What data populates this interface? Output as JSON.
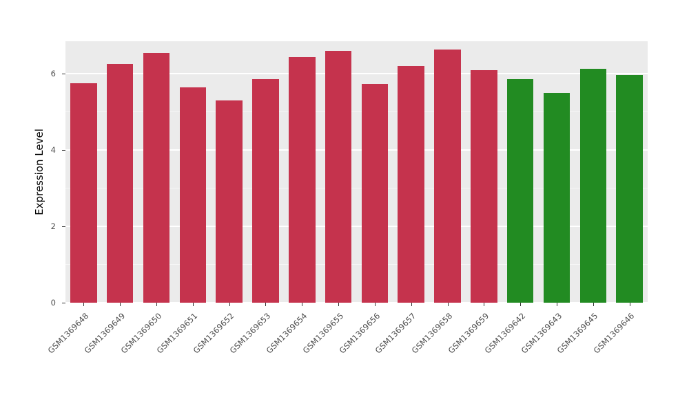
{
  "chart_data": {
    "type": "bar",
    "title": "",
    "xlabel": "",
    "ylabel": "Expression Level",
    "categories": [
      "GSM1369648",
      "GSM1369649",
      "GSM1369650",
      "GSM1369651",
      "GSM1369652",
      "GSM1369653",
      "GSM1369654",
      "GSM1369655",
      "GSM1369656",
      "GSM1369657",
      "GSM1369658",
      "GSM1369659",
      "GSM1369642",
      "GSM1369643",
      "GSM1369645",
      "GSM1369646"
    ],
    "values": [
      5.75,
      6.25,
      6.55,
      5.65,
      5.3,
      5.85,
      6.43,
      6.6,
      5.73,
      6.2,
      6.63,
      6.1,
      5.85,
      5.5,
      6.13,
      5.97
    ],
    "bar_colors": [
      "#C5334D",
      "#C5334D",
      "#C5334D",
      "#C5334D",
      "#C5334D",
      "#C5334D",
      "#C5334D",
      "#C5334D",
      "#C5334D",
      "#C5334D",
      "#C5334D",
      "#C5334D",
      "#228B22",
      "#228B22",
      "#228B22",
      "#228B22"
    ],
    "color_groups": {
      "group1": "#C5334D",
      "group2": "#228B22"
    },
    "ylim": [
      0,
      6.85
    ],
    "yticks": [
      0,
      2,
      4,
      6
    ],
    "yticks_minor": [
      1,
      3,
      5
    ],
    "grid": true,
    "legend_position": "none",
    "panel_background": "#EBEBEB"
  }
}
